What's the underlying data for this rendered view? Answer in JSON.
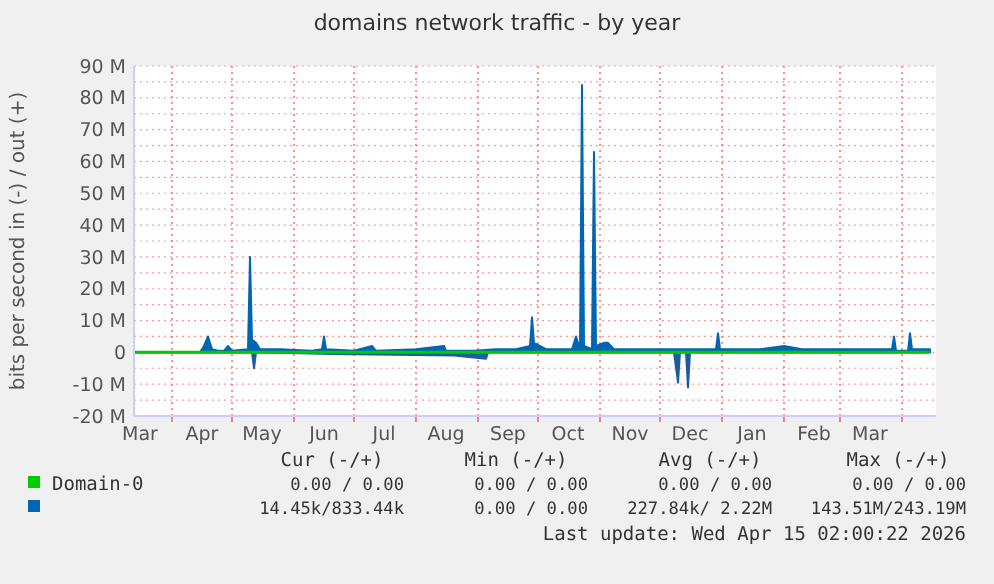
{
  "chart_data": {
    "type": "area",
    "title": "domains network traffic - by year",
    "ylabel": "bits per second in (-) / out (+)",
    "xlim": [
      "2025-03-13",
      "2026-04-18"
    ],
    "xticks": [
      {
        "value": "2025-03-16",
        "label": "Mar"
      },
      {
        "value": "2025-04-16",
        "label": "Apr"
      },
      {
        "value": "2025-05-16",
        "label": "May"
      },
      {
        "value": "2025-06-16",
        "label": "Jun"
      },
      {
        "value": "2025-07-16",
        "label": "Jul"
      },
      {
        "value": "2025-08-16",
        "label": "Aug"
      },
      {
        "value": "2025-09-16",
        "label": "Sep"
      },
      {
        "value": "2025-10-16",
        "label": "Oct"
      },
      {
        "value": "2025-11-16",
        "label": "Nov"
      },
      {
        "value": "2025-12-16",
        "label": "Dec"
      },
      {
        "value": "2026-01-16",
        "label": "Jan"
      },
      {
        "value": "2026-02-16",
        "label": "Feb"
      },
      {
        "value": "2026-03-16",
        "label": "Mar"
      },
      {
        "value": "2025-04-01",
        "label": null
      },
      {
        "value": "2025-05-01",
        "label": null
      },
      {
        "value": "2025-06-01",
        "label": null
      },
      {
        "value": "2025-07-01",
        "label": null
      },
      {
        "value": "2025-08-01",
        "label": null
      },
      {
        "value": "2025-09-01",
        "label": null
      },
      {
        "value": "2025-10-01",
        "label": null
      },
      {
        "value": "2025-11-01",
        "label": null
      },
      {
        "value": "2025-12-01",
        "label": null
      },
      {
        "value": "2026-01-01",
        "label": null
      },
      {
        "value": "2026-02-01",
        "label": null
      },
      {
        "value": "2026-03-01",
        "label": null
      },
      {
        "value": "2026-04-01",
        "label": null
      }
    ],
    "ylim": [
      -20,
      90
    ],
    "yticks": [
      {
        "value": -20,
        "label": "-20 M"
      },
      {
        "value": -15,
        "label": null
      },
      {
        "value": -10,
        "label": "-10 M"
      },
      {
        "value": -5,
        "label": null
      },
      {
        "value": 0,
        "label": "0"
      },
      {
        "value": 5,
        "label": null
      },
      {
        "value": 10,
        "label": "10 M"
      },
      {
        "value": 15,
        "label": null
      },
      {
        "value": 20,
        "label": "20 M"
      },
      {
        "value": 25,
        "label": null
      },
      {
        "value": 30,
        "label": "30 M"
      },
      {
        "value": 35,
        "label": null
      },
      {
        "value": 40,
        "label": "40 M"
      },
      {
        "value": 45,
        "label": null
      },
      {
        "value": 50,
        "label": "50 M"
      },
      {
        "value": 55,
        "label": null
      },
      {
        "value": 60,
        "label": "60 M"
      },
      {
        "value": 65,
        "label": null
      },
      {
        "value": 70,
        "label": "70 M"
      },
      {
        "value": 75,
        "label": null
      },
      {
        "value": 80,
        "label": "80 M"
      },
      {
        "value": 85,
        "label": null
      },
      {
        "value": 90,
        "label": "90 M"
      }
    ],
    "grid": true,
    "legend": "bottom",
    "series": [
      {
        "name": "Domain-0",
        "color": "#00cc00",
        "type": "line",
        "x": [
          "2025-03-13",
          "2026-04-15"
        ],
        "values": [
          0,
          0
        ]
      },
      {
        "color": "#0066b3",
        "x": [
          "2025-03-13",
          "2025-04-15",
          "2025-04-17",
          "2025-04-19",
          "2025-04-21",
          "2025-04-24",
          "2025-04-27",
          "2025-04-29",
          "2025-05-01",
          "2025-05-09",
          "2025-05-10",
          "2025-05-11",
          "2025-05-13",
          "2025-05-15",
          "2025-05-25",
          "2025-06-10",
          "2025-06-15",
          "2025-06-16",
          "2025-06-17",
          "2025-07-01",
          "2025-07-10",
          "2025-07-12",
          "2025-08-01",
          "2025-08-15",
          "2025-08-16",
          "2025-08-30",
          "2025-09-10",
          "2025-09-20",
          "2025-09-27",
          "2025-09-28",
          "2025-09-29",
          "2025-10-05",
          "2025-10-18",
          "2025-10-20",
          "2025-10-22",
          "2025-10-23",
          "2025-10-24",
          "2025-10-28",
          "2025-10-29",
          "2025-10-30",
          "2025-11-03",
          "2025-11-05",
          "2025-11-08",
          "2025-11-20",
          "2025-12-01",
          "2025-12-10",
          "2025-12-29",
          "2025-12-30",
          "2025-12-31",
          "2026-01-20",
          "2026-02-01",
          "2026-02-10",
          "2026-03-01",
          "2026-03-27",
          "2026-03-28",
          "2026-03-29",
          "2026-04-04",
          "2026-04-05",
          "2026-04-06",
          "2026-04-15"
        ],
        "values": [
          0,
          0,
          2,
          5,
          1,
          0.5,
          0.5,
          2,
          0.5,
          1,
          30,
          4,
          3,
          1,
          1,
          0.5,
          1,
          5,
          1,
          0.5,
          2,
          0.5,
          1,
          2,
          0.5,
          0.5,
          1,
          1,
          2,
          11,
          3,
          1,
          1,
          5,
          1,
          84,
          2,
          1,
          63,
          2,
          3,
          3,
          1,
          1,
          1,
          1,
          1,
          6,
          1,
          1,
          2,
          1,
          1,
          1,
          5,
          0.5,
          0.5,
          6,
          1,
          1
        ]
      },
      {
        "color": "#1d5c9e",
        "x": [
          "2025-03-13",
          "2025-05-11",
          "2025-05-12",
          "2025-05-13",
          "2025-06-20",
          "2025-08-20",
          "2025-09-05",
          "2025-09-06",
          "2025-12-08",
          "2025-12-10",
          "2025-12-11",
          "2025-12-14",
          "2025-12-15",
          "2025-12-16",
          "2026-04-15"
        ],
        "values": [
          0,
          0,
          -5,
          0,
          -0.5,
          -1,
          -2,
          0,
          0,
          -9.5,
          0,
          0,
          -11,
          0,
          0
        ]
      }
    ],
    "annotations": [
      "Cur (-/+)",
      "Min (-/+)",
      "Avg (-/+)",
      "Max (-/+)",
      "0.00 / 0.00",
      "0.00 / 0.00",
      "0.00 / 0.00",
      "0.00 / 0.00",
      "14.45k/833.44k",
      "0.00 / 0.00",
      "227.84k/ 2.22M",
      "143.51M/243.19M",
      "Last update: Wed Apr 15 02:00:22 2026"
    ]
  }
}
